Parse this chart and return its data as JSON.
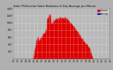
{
  "title": "· ·1·S· ·b· S·b·/·r·p·p· ·S·l·r· ·R·d·&· ·D·y· ·A·v·r·g·· ·p·r· ·M·n·t·",
  "title_short": "Solar PV/Inverter Solar Radiation & Day Average per Minute",
  "bg_color": "#b0b0b0",
  "plot_bg_color": "#b8b8b8",
  "bar_color": "#dd0000",
  "legend_labels": [
    "Current",
    "Average"
  ],
  "legend_colors": [
    "#dd0000",
    "#0000ee"
  ],
  "ylim": [
    0,
    1400
  ],
  "xlim": [
    0,
    288
  ],
  "yticks": [
    200,
    400,
    600,
    800,
    1000,
    1200,
    1400
  ],
  "ytick_labels": [
    "200",
    "400",
    "600",
    "800",
    "1000",
    "1200",
    "1400"
  ],
  "grid_color": "#ffffff",
  "figsize": [
    1.6,
    1.0
  ],
  "dpi": 100
}
